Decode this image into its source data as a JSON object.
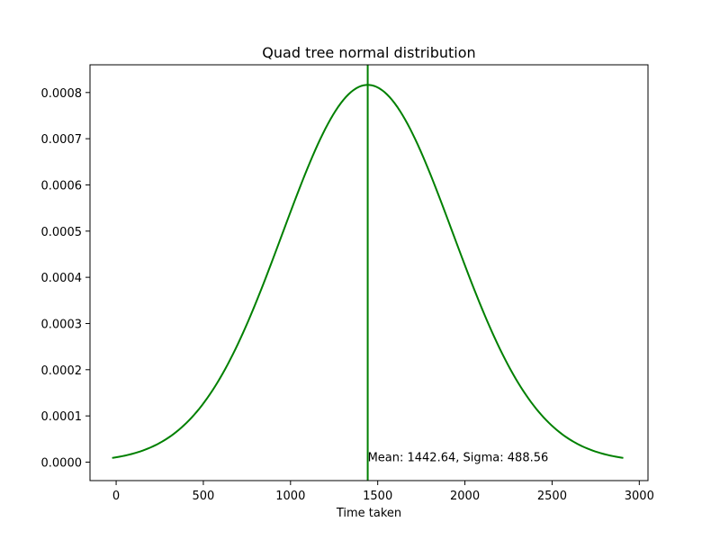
{
  "chart_data": {
    "type": "line",
    "title": "Quad tree normal distribution",
    "xlabel": "Time taken",
    "ylabel": "",
    "xlim": [
      -150,
      3050
    ],
    "ylim": [
      -4e-05,
      0.00086
    ],
    "xticks": [
      0,
      500,
      1000,
      1500,
      2000,
      2500,
      3000
    ],
    "xtick_labels": [
      "0",
      "500",
      "1000",
      "1500",
      "2000",
      "2500",
      "3000"
    ],
    "yticks": [
      0,
      0.0001,
      0.0002,
      0.0003,
      0.0004,
      0.0005,
      0.0006,
      0.0007,
      0.0008
    ],
    "ytick_labels": [
      "0.0000",
      "0.0001",
      "0.0002",
      "0.0003",
      "0.0004",
      "0.0005",
      "0.0006",
      "0.0007",
      "0.0008"
    ],
    "grid": false,
    "series": [
      {
        "x_range": [
          -23.04,
          2908.32
        ],
        "samples": 200,
        "distribution": "normal",
        "mean": 1442.64,
        "sigma": 488.56,
        "color": "#008000"
      }
    ],
    "vlines": [
      {
        "x": 1442.64,
        "color": "#008000"
      }
    ],
    "annotations": [
      {
        "text": "Mean: 1442.64, Sigma: 488.56",
        "x": 1442.64,
        "y": 0.0
      }
    ]
  }
}
